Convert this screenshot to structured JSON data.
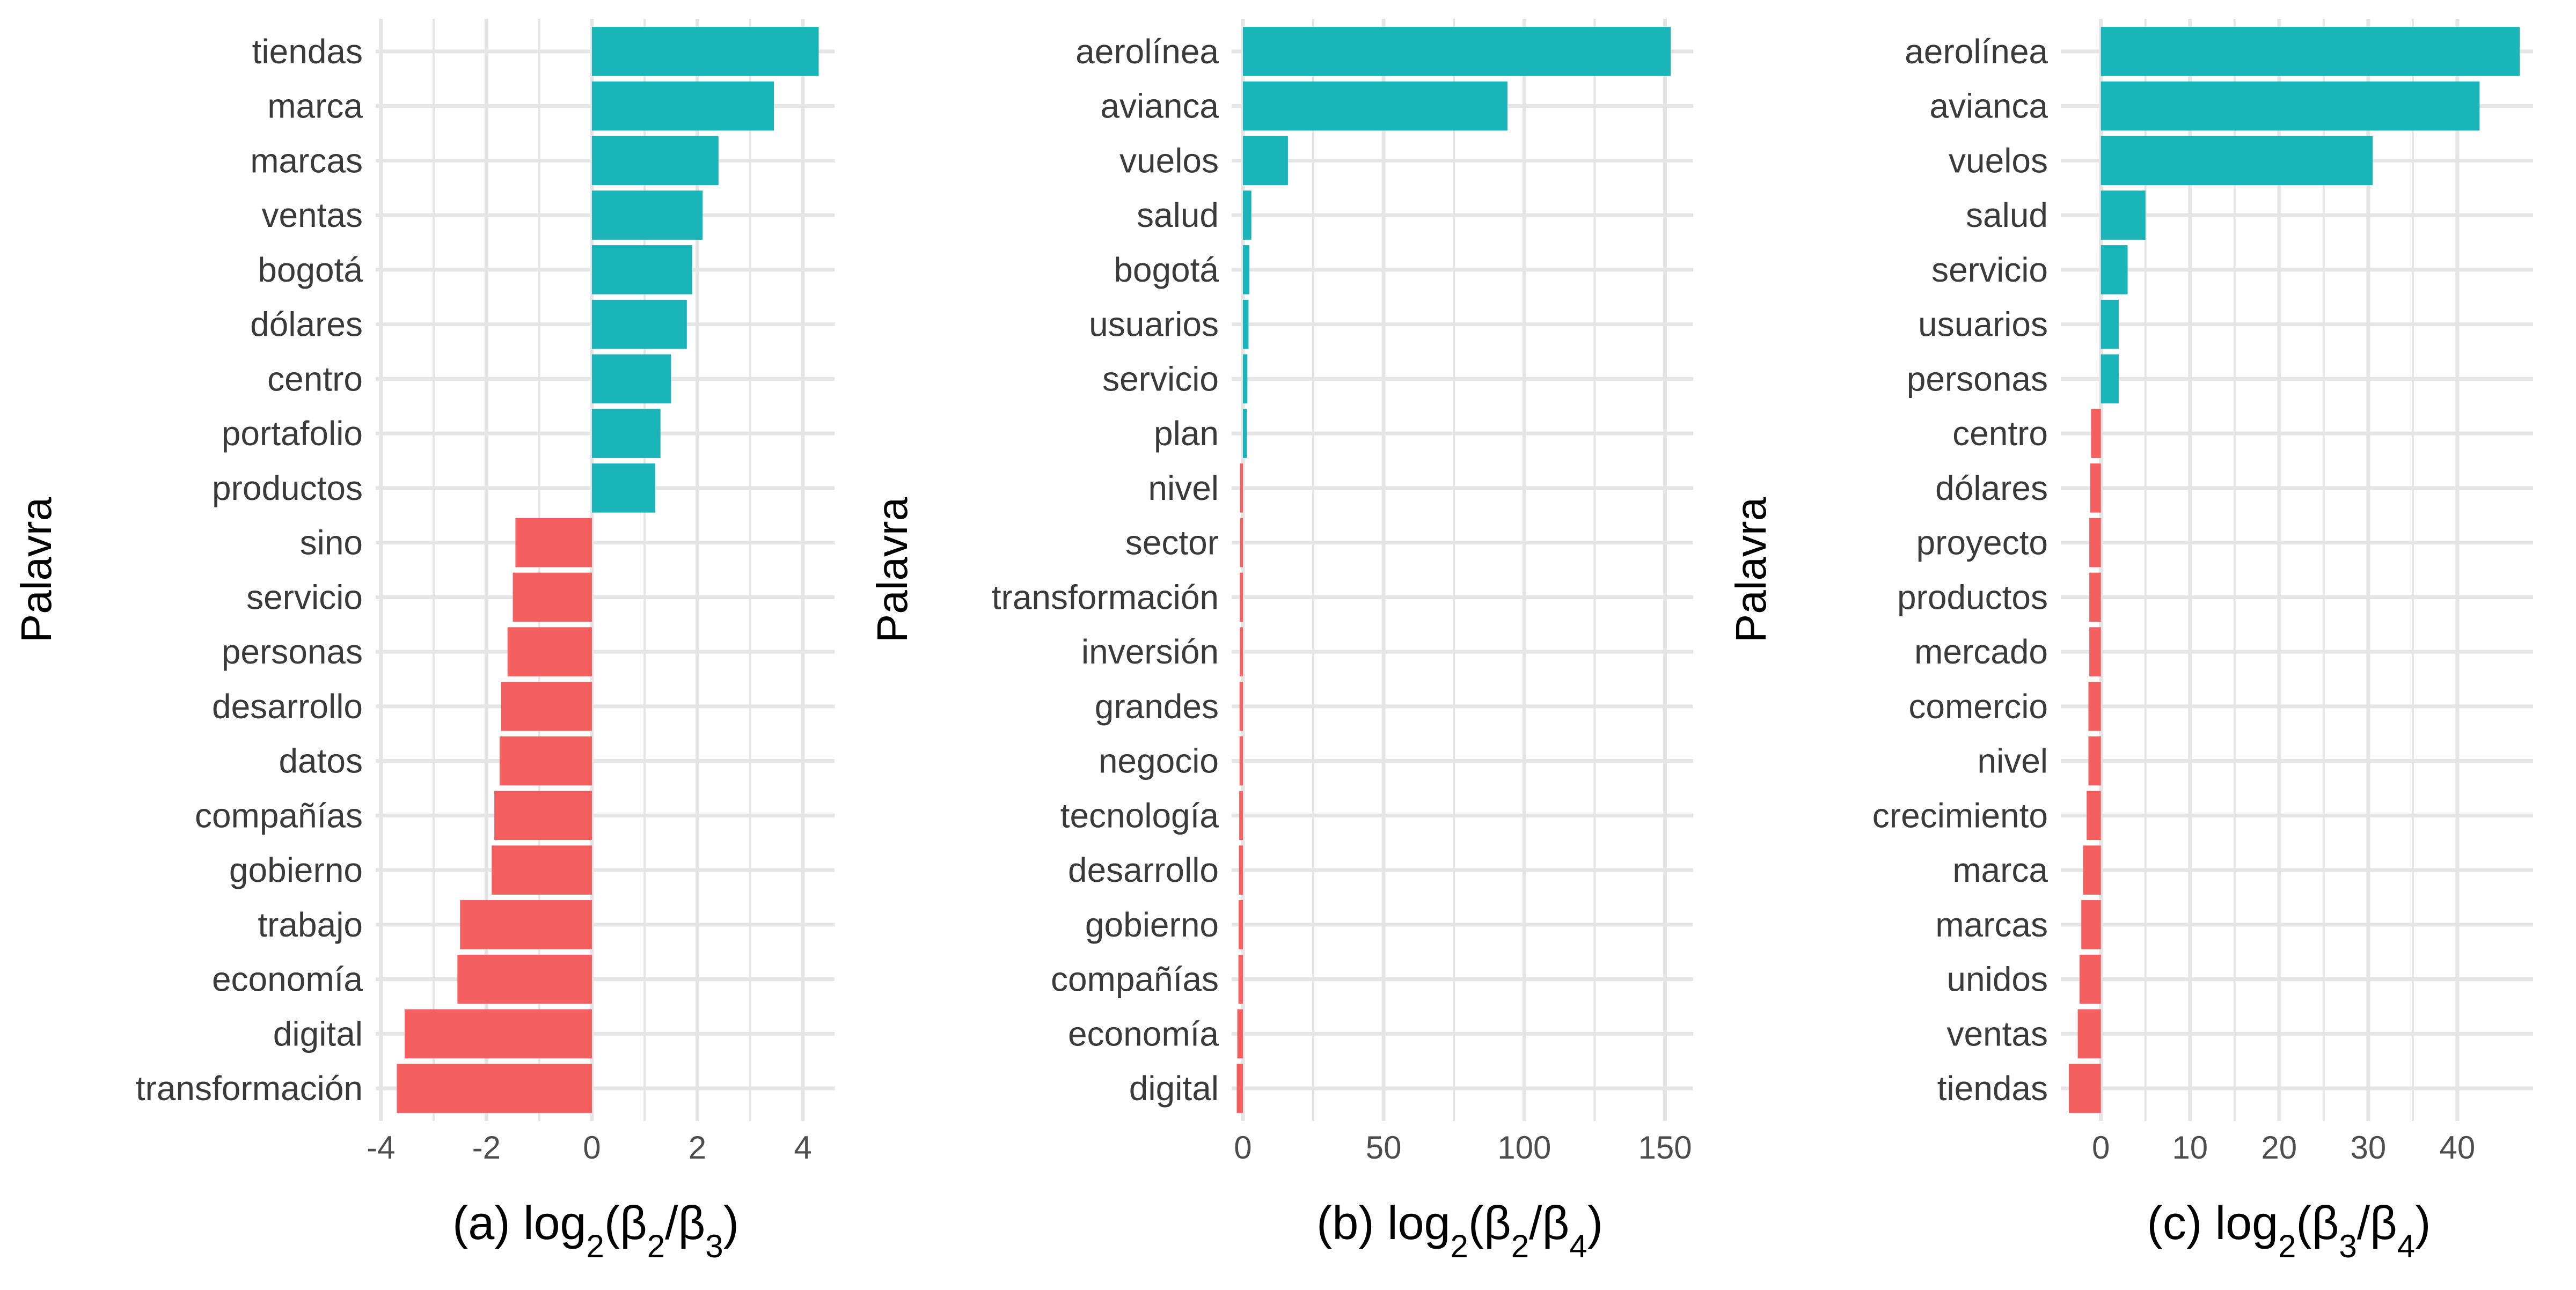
{
  "colors": {
    "positive": "#19B5B8",
    "negative": "#F46060",
    "grid": "#E5E5E5",
    "background": "#FFFFFF"
  },
  "chart_data": [
    {
      "type": "bar",
      "orientation": "horizontal",
      "xlabel": {
        "prefix": "(a) log",
        "sub": "2",
        "num": "β",
        "num_sub": "2",
        "den": "β",
        "den_sub": "3"
      },
      "ylabel": "Palavra",
      "xlim": [
        -4.1,
        4.6
      ],
      "xticks": [
        -4,
        -2,
        0,
        2,
        4
      ],
      "xtick_labels": [
        "-4",
        "-2",
        "0",
        "2",
        "4"
      ],
      "grid": true,
      "categories": [
        "tiendas",
        "marca",
        "marcas",
        "ventas",
        "bogotá",
        "dólares",
        "centro",
        "portafolio",
        "productos",
        "sino",
        "servicio",
        "personas",
        "desarrollo",
        "datos",
        "compañías",
        "gobierno",
        "trabajo",
        "economía",
        "digital",
        "transformación"
      ],
      "values": [
        4.3,
        3.45,
        2.4,
        2.1,
        1.9,
        1.8,
        1.5,
        1.3,
        1.2,
        -1.45,
        -1.5,
        -1.6,
        -1.72,
        -1.75,
        -1.85,
        -1.9,
        -2.5,
        -2.55,
        -3.55,
        -3.7
      ]
    },
    {
      "type": "bar",
      "orientation": "horizontal",
      "xlabel": {
        "prefix": "(b) log",
        "sub": "2",
        "num": "β",
        "num_sub": "2",
        "den": "β",
        "den_sub": "4"
      },
      "ylabel": "Palavra",
      "xlim": [
        -4,
        160
      ],
      "xticks": [
        0,
        50,
        100,
        150
      ],
      "xtick_labels": [
        "0",
        "50",
        "100",
        "150"
      ],
      "grid": true,
      "categories": [
        "aerolínea",
        "avianca",
        "vuelos",
        "salud",
        "bogotá",
        "usuarios",
        "servicio",
        "plan",
        "nivel",
        "sector",
        "transformación",
        "inversión",
        "grandes",
        "negocio",
        "tecnología",
        "desarrollo",
        "gobierno",
        "compañías",
        "economía",
        "digital"
      ],
      "values": [
        152,
        94,
        16,
        3,
        2.3,
        2,
        1.6,
        1.4,
        -1.0,
        -1.0,
        -1.1,
        -1.1,
        -1.2,
        -1.2,
        -1.3,
        -1.4,
        -1.5,
        -1.6,
        -2.0,
        -2.2
      ]
    },
    {
      "type": "bar",
      "orientation": "horizontal",
      "xlabel": {
        "prefix": "(c) log",
        "sub": "2",
        "num": "β",
        "num_sub": "3",
        "den": "β",
        "den_sub": "4"
      },
      "ylabel": "Palavra",
      "xlim": [
        -4.5,
        48.5
      ],
      "xticks": [
        0,
        10,
        20,
        30,
        40
      ],
      "xtick_labels": [
        "0",
        "10",
        "20",
        "30",
        "40"
      ],
      "grid": true,
      "categories": [
        "aerolínea",
        "avianca",
        "vuelos",
        "salud",
        "servicio",
        "usuarios",
        "personas",
        "centro",
        "dólares",
        "proyecto",
        "productos",
        "mercado",
        "comercio",
        "nivel",
        "crecimiento",
        "marca",
        "marcas",
        "unidos",
        "ventas",
        "tiendas"
      ],
      "values": [
        47,
        42.5,
        30.5,
        5,
        3,
        2,
        2,
        -1.1,
        -1.2,
        -1.3,
        -1.3,
        -1.3,
        -1.4,
        -1.4,
        -1.6,
        -2.0,
        -2.2,
        -2.4,
        -2.6,
        -3.6
      ]
    }
  ]
}
